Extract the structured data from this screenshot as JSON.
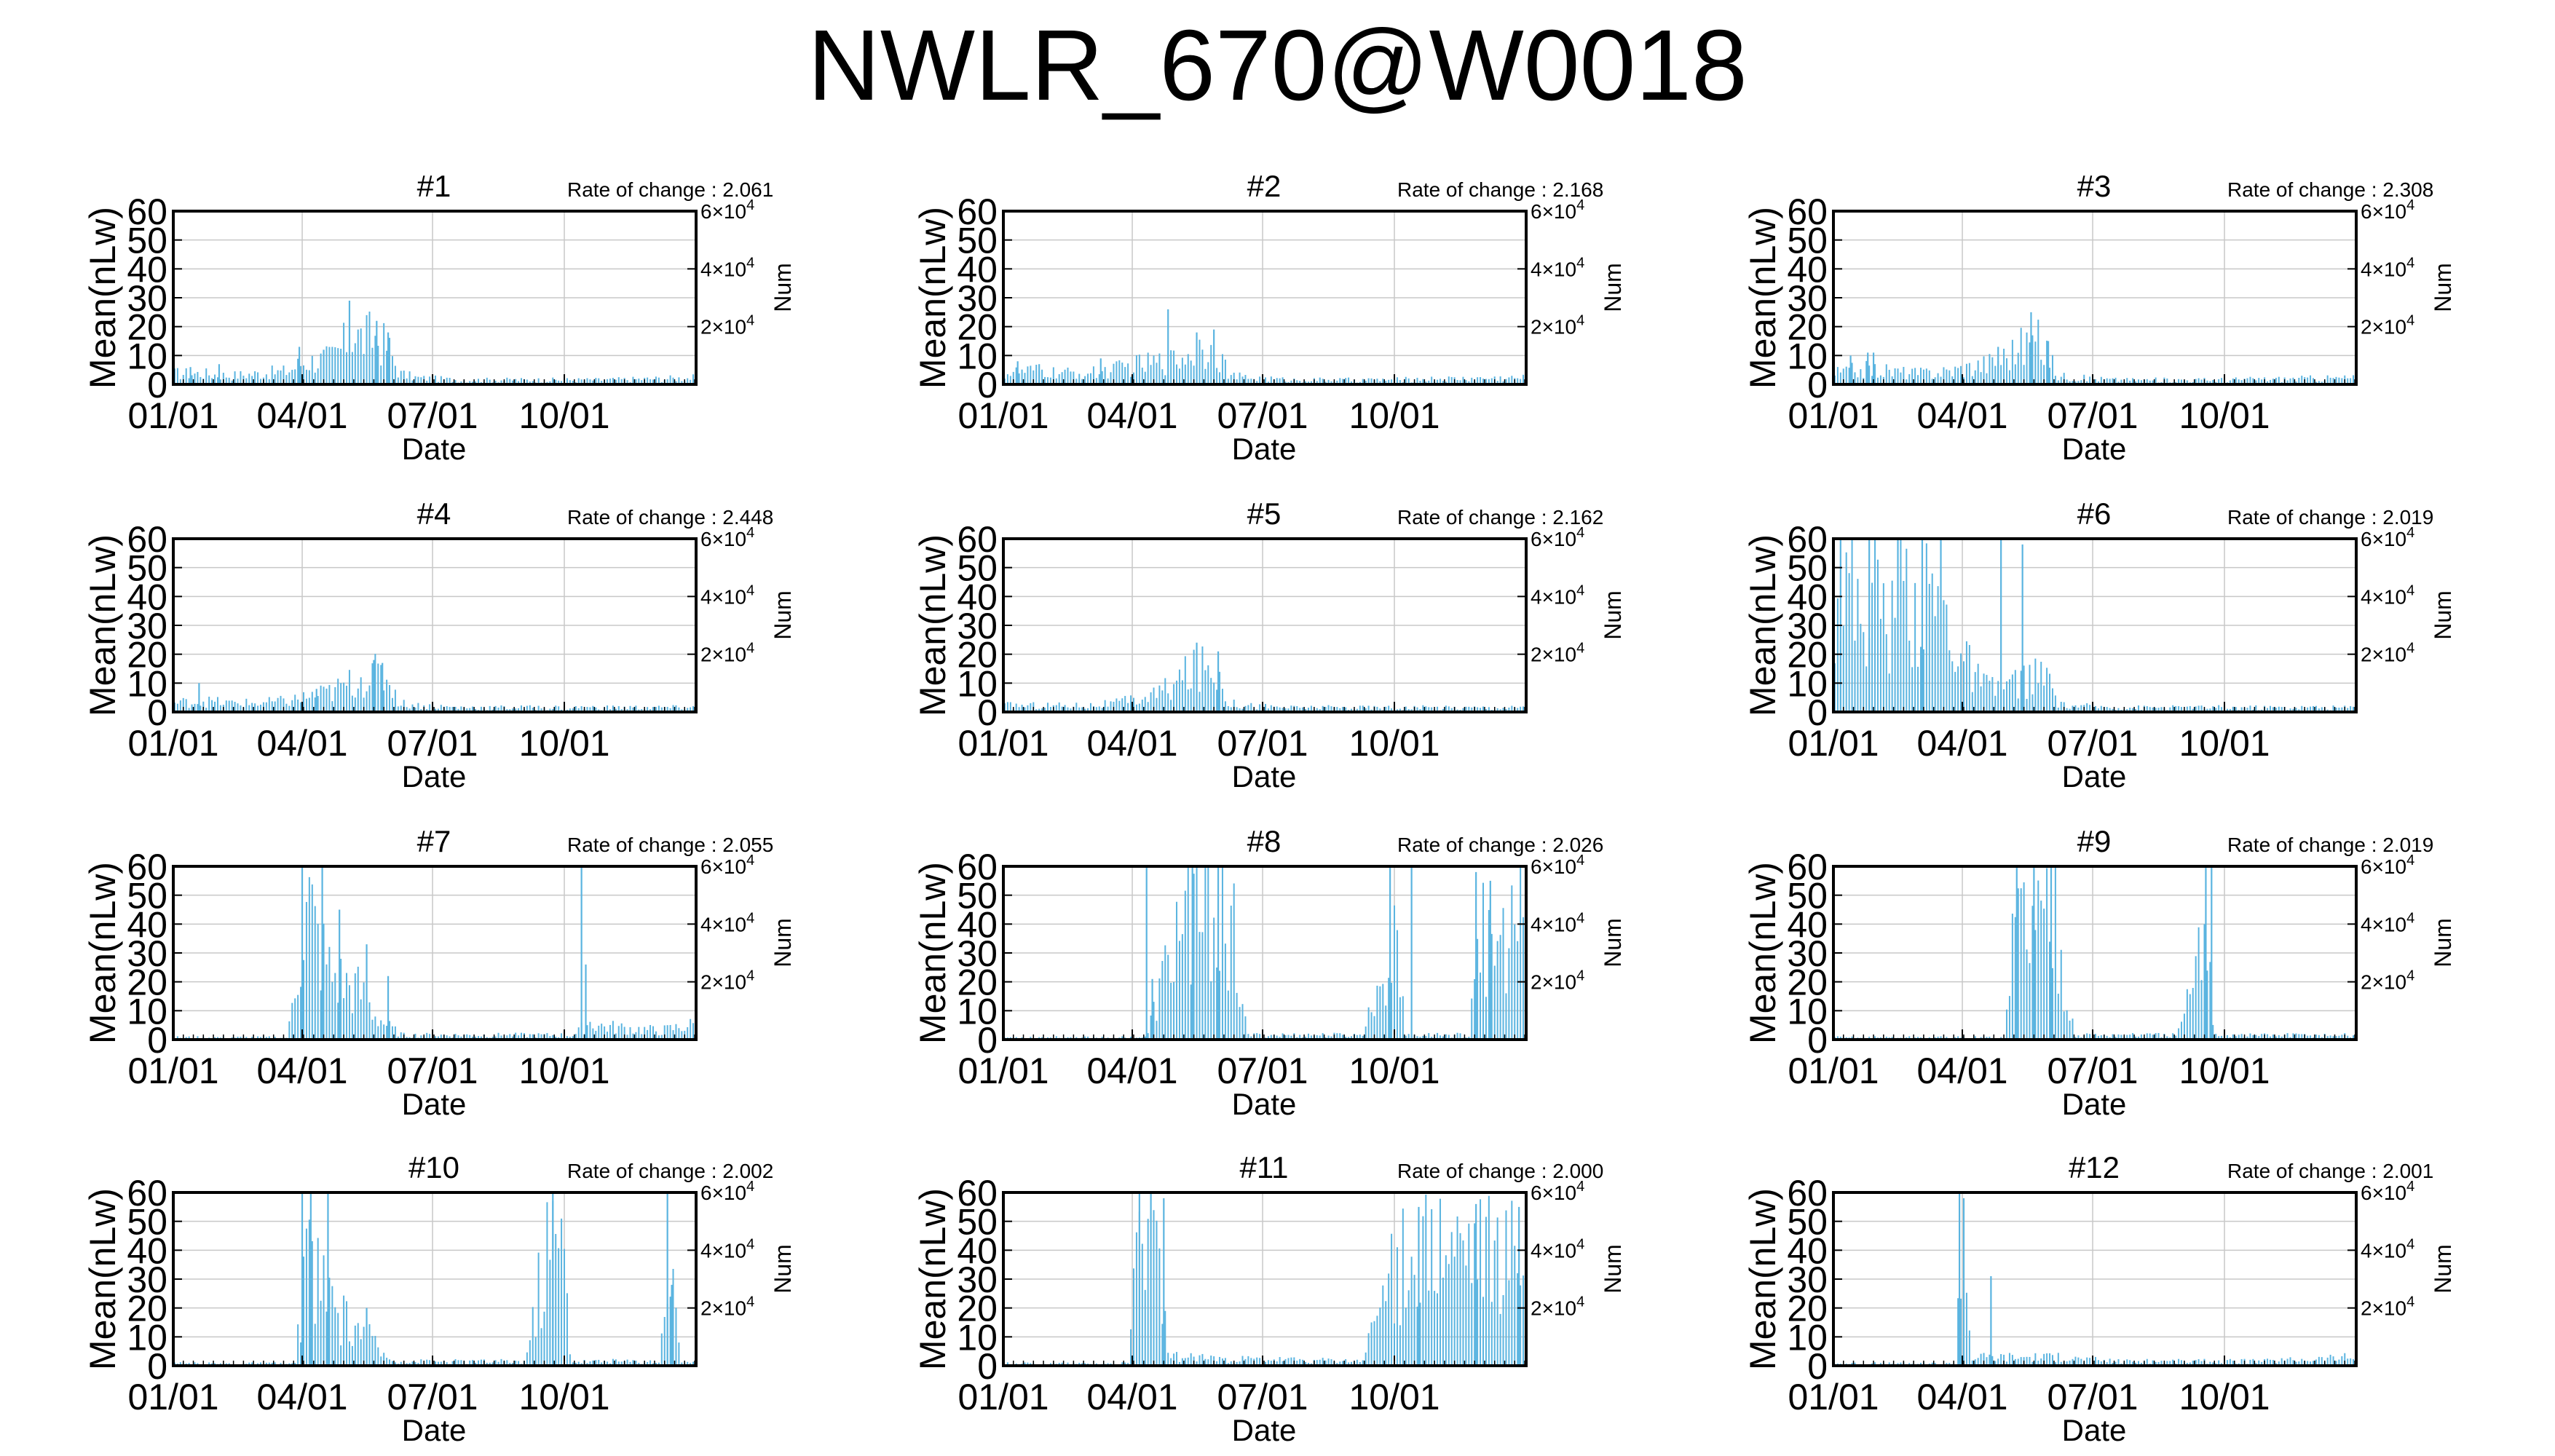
{
  "title": "NWLR_670@W0018",
  "common": {
    "ylabel": "Mean(nLw)",
    "y2label": "Num",
    "xlabel": "Date",
    "x_ticks": [
      "01/01",
      "04/01",
      "07/01",
      "10/01"
    ],
    "y_ticks": [
      "0",
      "10",
      "20",
      "30",
      "40",
      "50",
      "60"
    ],
    "y2_ticks": [
      {
        "mantissa": "2",
        "text": "2×10",
        "exp": "4"
      },
      {
        "mantissa": "4",
        "text": "4×10",
        "exp": "4"
      },
      {
        "mantissa": "6",
        "text": "6×10",
        "exp": "4"
      }
    ],
    "rate_prefix": "Rate of change : ",
    "bar_color": "#5ab4e0"
  },
  "chart_data": [
    {
      "type": "bar",
      "panel": "#1",
      "rate_of_change": "2.061",
      "ylim": [
        0,
        60
      ],
      "y2lim": [
        0,
        60000
      ],
      "xlim": [
        "01/01",
        "12/31"
      ],
      "profile": [
        [
          0,
          5
        ],
        [
          20,
          5
        ],
        [
          40,
          4
        ],
        [
          60,
          5
        ],
        [
          80,
          6
        ],
        [
          90,
          10
        ],
        [
          100,
          11
        ],
        [
          110,
          12
        ],
        [
          118,
          17
        ],
        [
          125,
          25
        ],
        [
          130,
          21
        ],
        [
          140,
          22
        ],
        [
          150,
          17
        ],
        [
          158,
          5
        ],
        [
          170,
          3
        ],
        [
          200,
          2
        ],
        [
          260,
          2
        ],
        [
          300,
          2
        ],
        [
          365,
          3
        ]
      ],
      "spikes": [
        [
          12,
          6
        ],
        [
          32,
          7
        ],
        [
          88,
          13
        ],
        [
          105,
          12
        ],
        [
          123,
          29
        ],
        [
          142,
          22
        ],
        [
          150,
          18
        ]
      ]
    },
    {
      "type": "bar",
      "panel": "#2",
      "rate_of_change": "2.168",
      "ylim": [
        0,
        60
      ],
      "y2lim": [
        0,
        60000
      ],
      "xlim": [
        "01/01",
        "12/31"
      ],
      "profile": [
        [
          0,
          5
        ],
        [
          20,
          6
        ],
        [
          40,
          5
        ],
        [
          60,
          5
        ],
        [
          80,
          7
        ],
        [
          95,
          9
        ],
        [
          110,
          10
        ],
        [
          120,
          11
        ],
        [
          130,
          14
        ],
        [
          140,
          17
        ],
        [
          150,
          15
        ],
        [
          158,
          4
        ],
        [
          170,
          3
        ],
        [
          200,
          2
        ],
        [
          260,
          2
        ],
        [
          365,
          3
        ]
      ],
      "spikes": [
        [
          10,
          8
        ],
        [
          25,
          7
        ],
        [
          68,
          9
        ],
        [
          115,
          26
        ],
        [
          135,
          18
        ],
        [
          147,
          19
        ]
      ]
    },
    {
      "type": "bar",
      "panel": "#3",
      "rate_of_change": "2.308",
      "ylim": [
        0,
        60
      ],
      "y2lim": [
        0,
        60000
      ],
      "xlim": [
        "01/01",
        "12/31"
      ],
      "profile": [
        [
          0,
          5
        ],
        [
          20,
          7
        ],
        [
          40,
          6
        ],
        [
          60,
          5
        ],
        [
          80,
          6
        ],
        [
          95,
          8
        ],
        [
          110,
          10
        ],
        [
          120,
          13
        ],
        [
          130,
          17
        ],
        [
          140,
          20
        ],
        [
          148,
          17
        ],
        [
          156,
          4
        ],
        [
          170,
          3
        ],
        [
          200,
          2
        ],
        [
          260,
          2
        ],
        [
          365,
          3
        ]
      ],
      "spikes": [
        [
          12,
          10
        ],
        [
          24,
          11
        ],
        [
          28,
          11
        ],
        [
          115,
          13
        ],
        [
          138,
          25
        ],
        [
          150,
          15
        ]
      ]
    },
    {
      "type": "bar",
      "panel": "#4",
      "rate_of_change": "2.448",
      "ylim": [
        0,
        60
      ],
      "y2lim": [
        0,
        60000
      ],
      "xlim": [
        "01/01",
        "12/31"
      ],
      "profile": [
        [
          0,
          4
        ],
        [
          20,
          5
        ],
        [
          40,
          4
        ],
        [
          60,
          4
        ],
        [
          80,
          5
        ],
        [
          95,
          7
        ],
        [
          110,
          9
        ],
        [
          120,
          12
        ],
        [
          130,
          15
        ],
        [
          140,
          17
        ],
        [
          150,
          16
        ],
        [
          158,
          4
        ],
        [
          170,
          3
        ],
        [
          200,
          2
        ],
        [
          260,
          2
        ],
        [
          365,
          2
        ]
      ],
      "spikes": [
        [
          18,
          10
        ],
        [
          100,
          8
        ],
        [
          140,
          18
        ],
        [
          146,
          17
        ]
      ]
    },
    {
      "type": "bar",
      "panel": "#5",
      "rate_of_change": "2.162",
      "ylim": [
        0,
        60
      ],
      "y2lim": [
        0,
        60000
      ],
      "xlim": [
        "01/01",
        "12/31"
      ],
      "profile": [
        [
          0,
          3
        ],
        [
          30,
          3
        ],
        [
          60,
          3
        ],
        [
          80,
          4
        ],
        [
          95,
          6
        ],
        [
          110,
          9
        ],
        [
          120,
          13
        ],
        [
          130,
          18
        ],
        [
          140,
          20
        ],
        [
          150,
          19
        ],
        [
          158,
          4
        ],
        [
          170,
          3
        ],
        [
          200,
          2
        ],
        [
          260,
          2
        ],
        [
          365,
          2
        ]
      ],
      "spikes": [
        [
          135,
          24
        ],
        [
          150,
          21
        ]
      ]
    },
    {
      "type": "bar",
      "panel": "#6",
      "rate_of_change": "2.019",
      "ylim": [
        0,
        60
      ],
      "y2lim": [
        0,
        60000
      ],
      "xlim": [
        "01/01",
        "12/31"
      ],
      "profile": [
        [
          0,
          55
        ],
        [
          10,
          60
        ],
        [
          20,
          42
        ],
        [
          30,
          56
        ],
        [
          40,
          38
        ],
        [
          50,
          58
        ],
        [
          60,
          45
        ],
        [
          70,
          55
        ],
        [
          80,
          40
        ],
        [
          90,
          25
        ],
        [
          100,
          15
        ],
        [
          110,
          10
        ],
        [
          120,
          12
        ],
        [
          130,
          14
        ],
        [
          140,
          16
        ],
        [
          150,
          15
        ],
        [
          158,
          3
        ],
        [
          200,
          2
        ],
        [
          260,
          2
        ],
        [
          365,
          2
        ]
      ],
      "spikes": [
        [
          5,
          60
        ],
        [
          25,
          60
        ],
        [
          45,
          60
        ],
        [
          62,
          60
        ],
        [
          75,
          60
        ],
        [
          117,
          60
        ],
        [
          132,
          58
        ]
      ]
    },
    {
      "type": "bar",
      "panel": "#7",
      "rate_of_change": "2.055",
      "ylim": [
        0,
        60
      ],
      "y2lim": [
        0,
        60000
      ],
      "xlim": [
        "01/01",
        "12/31"
      ],
      "profile": [
        [
          0,
          1
        ],
        [
          80,
          1
        ],
        [
          88,
          40
        ],
        [
          95,
          60
        ],
        [
          100,
          45
        ],
        [
          110,
          30
        ],
        [
          120,
          25
        ],
        [
          130,
          22
        ],
        [
          140,
          12
        ],
        [
          150,
          6
        ],
        [
          160,
          2
        ],
        [
          280,
          2
        ],
        [
          290,
          8
        ],
        [
          300,
          6
        ],
        [
          320,
          5
        ],
        [
          340,
          4
        ],
        [
          365,
          7
        ]
      ],
      "spikes": [
        [
          90,
          60
        ],
        [
          104,
          60
        ],
        [
          116,
          45
        ],
        [
          135,
          33
        ],
        [
          150,
          22
        ],
        [
          285,
          60
        ],
        [
          288,
          26
        ]
      ]
    },
    {
      "type": "bar",
      "panel": "#8",
      "rate_of_change": "2.026",
      "ylim": [
        0,
        60
      ],
      "y2lim": [
        0,
        60000
      ],
      "xlim": [
        "01/01",
        "12/31"
      ],
      "profile": [
        [
          0,
          1
        ],
        [
          100,
          1
        ],
        [
          122,
          50
        ],
        [
          130,
          60
        ],
        [
          140,
          55
        ],
        [
          150,
          58
        ],
        [
          160,
          50
        ],
        [
          170,
          2
        ],
        [
          250,
          2
        ],
        [
          258,
          15
        ],
        [
          265,
          35
        ],
        [
          275,
          55
        ],
        [
          280,
          2
        ],
        [
          325,
          2
        ],
        [
          330,
          50
        ],
        [
          345,
          40
        ],
        [
          365,
          55
        ]
      ],
      "spikes": [
        [
          100,
          60
        ],
        [
          104,
          21
        ],
        [
          132,
          60
        ],
        [
          150,
          60
        ],
        [
          270,
          60
        ],
        [
          285,
          60
        ],
        [
          330,
          58
        ],
        [
          340,
          55
        ]
      ]
    },
    {
      "type": "bar",
      "panel": "#9",
      "rate_of_change": "2.019",
      "ylim": [
        0,
        60
      ],
      "y2lim": [
        0,
        60000
      ],
      "xlim": [
        "01/01",
        "12/31"
      ],
      "profile": [
        [
          0,
          1
        ],
        [
          120,
          1
        ],
        [
          125,
          45
        ],
        [
          130,
          60
        ],
        [
          145,
          55
        ],
        [
          155,
          60
        ],
        [
          160,
          35
        ],
        [
          168,
          2
        ],
        [
          240,
          2
        ],
        [
          245,
          10
        ],
        [
          255,
          35
        ],
        [
          262,
          55
        ],
        [
          266,
          2
        ],
        [
          365,
          2
        ]
      ],
      "spikes": [
        [
          128,
          60
        ],
        [
          140,
          60
        ],
        [
          152,
          60
        ],
        [
          260,
          60
        ],
        [
          264,
          60
        ]
      ]
    },
    {
      "type": "bar",
      "panel": "#10",
      "rate_of_change": "2.002",
      "ylim": [
        0,
        60
      ],
      "y2lim": [
        0,
        60000
      ],
      "xlim": [
        "01/01",
        "12/31"
      ],
      "profile": [
        [
          0,
          1
        ],
        [
          85,
          1
        ],
        [
          92,
          45
        ],
        [
          100,
          40
        ],
        [
          110,
          30
        ],
        [
          120,
          20
        ],
        [
          130,
          18
        ],
        [
          140,
          10
        ],
        [
          150,
          3
        ],
        [
          160,
          2
        ],
        [
          245,
          2
        ],
        [
          250,
          15
        ],
        [
          260,
          55
        ],
        [
          272,
          58
        ],
        [
          278,
          2
        ],
        [
          340,
          2
        ],
        [
          345,
          55
        ],
        [
          355,
          2
        ],
        [
          365,
          2
        ]
      ],
      "spikes": [
        [
          90,
          60
        ],
        [
          96,
          60
        ],
        [
          108,
          60
        ],
        [
          135,
          20
        ],
        [
          265,
          60
        ],
        [
          345,
          60
        ],
        [
          348,
          28
        ]
      ]
    },
    {
      "type": "bar",
      "panel": "#11",
      "rate_of_change": "2.000",
      "ylim": [
        0,
        60
      ],
      "y2lim": [
        0,
        60000
      ],
      "xlim": [
        "01/01",
        "12/31"
      ],
      "profile": [
        [
          0,
          1
        ],
        [
          88,
          1
        ],
        [
          92,
          55
        ],
        [
          100,
          58
        ],
        [
          110,
          40
        ],
        [
          115,
          4
        ],
        [
          130,
          4
        ],
        [
          160,
          3
        ],
        [
          250,
          2
        ],
        [
          255,
          10
        ],
        [
          265,
          35
        ],
        [
          275,
          45
        ],
        [
          290,
          50
        ],
        [
          310,
          52
        ],
        [
          330,
          50
        ],
        [
          350,
          48
        ],
        [
          365,
          50
        ]
      ],
      "spikes": [
        [
          95,
          60
        ],
        [
          103,
          60
        ],
        [
          112,
          58
        ],
        [
          290,
          55
        ],
        [
          330,
          56
        ],
        [
          360,
          55
        ]
      ]
    },
    {
      "type": "bar",
      "panel": "#12",
      "rate_of_change": "2.001",
      "ylim": [
        0,
        60
      ],
      "y2lim": [
        0,
        60000
      ],
      "xlim": [
        "01/01",
        "12/31"
      ],
      "profile": [
        [
          0,
          1
        ],
        [
          85,
          1
        ],
        [
          88,
          40
        ],
        [
          92,
          55
        ],
        [
          96,
          4
        ],
        [
          110,
          4
        ],
        [
          130,
          4
        ],
        [
          150,
          4
        ],
        [
          200,
          2
        ],
        [
          300,
          2
        ],
        [
          365,
          4
        ]
      ],
      "spikes": [
        [
          88,
          60
        ],
        [
          91,
          58
        ],
        [
          110,
          31
        ]
      ]
    }
  ]
}
